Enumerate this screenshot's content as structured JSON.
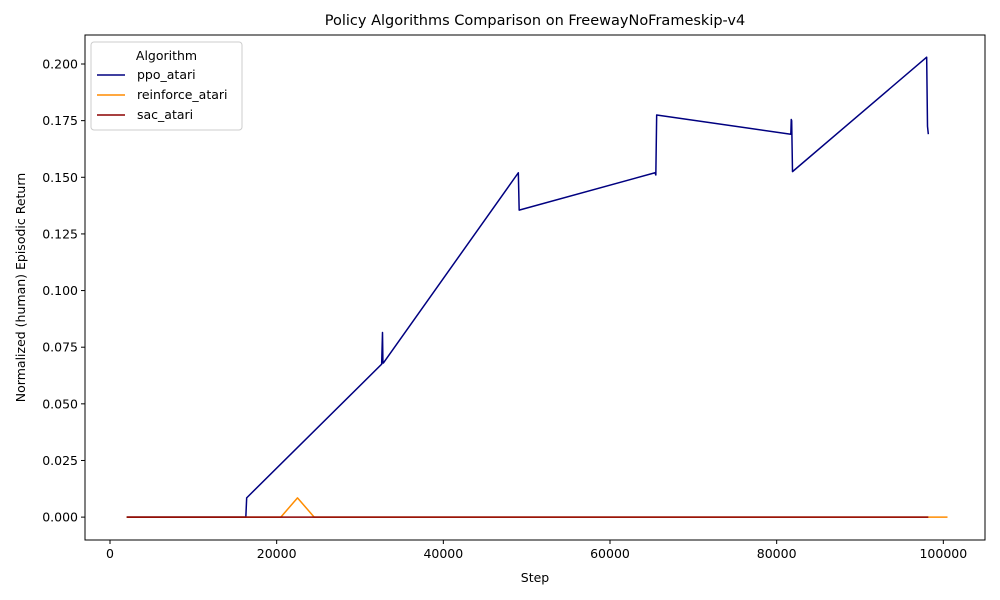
{
  "chart_data": {
    "type": "line",
    "title": "Policy Algorithms Comparison on FreewayNoFrameskip-v4",
    "xlabel": "Step",
    "ylabel": "Normalized (human) Episodic Return",
    "xlim": [
      -3000,
      105000
    ],
    "ylim": [
      -0.0101,
      0.2128
    ],
    "xticks": [
      0,
      20000,
      40000,
      60000,
      80000,
      100000
    ],
    "xtick_labels": [
      "0",
      "20000",
      "40000",
      "60000",
      "80000",
      "100000"
    ],
    "yticks": [
      0.0,
      0.025,
      0.05,
      0.075,
      0.1,
      0.125,
      0.15,
      0.175,
      0.2
    ],
    "ytick_labels": [
      "0.000",
      "0.025",
      "0.050",
      "0.075",
      "0.100",
      "0.125",
      "0.150",
      "0.175",
      "0.200"
    ],
    "grid": false,
    "legend": {
      "title": "Algorithm",
      "placement": "top-left"
    },
    "series": [
      {
        "name": "ppo_atari",
        "color": "#000080",
        "x": [
          2000,
          16300,
          16400,
          32600,
          32700,
          32750,
          32800,
          49000,
          49100,
          65400,
          65450,
          65500,
          65600,
          81700,
          81750,
          81800,
          81900,
          98000,
          98100,
          98200
        ],
        "y": [
          0.0,
          0.0,
          0.0085,
          0.0675,
          0.0815,
          0.068,
          0.068,
          0.152,
          0.1355,
          0.152,
          0.1515,
          0.151,
          0.1775,
          0.169,
          0.1755,
          0.175,
          0.1525,
          0.203,
          0.1725,
          0.169
        ]
      },
      {
        "name": "reinforce_atari",
        "color": "#ff8c00",
        "x": [
          2000,
          20500,
          22500,
          24500,
          100500
        ],
        "y": [
          0.0,
          0.0,
          0.0085,
          0.0,
          0.0
        ]
      },
      {
        "name": "sac_atari",
        "color": "#8b0000",
        "x": [
          2000,
          98200
        ],
        "y": [
          0.0,
          0.0
        ]
      }
    ]
  }
}
